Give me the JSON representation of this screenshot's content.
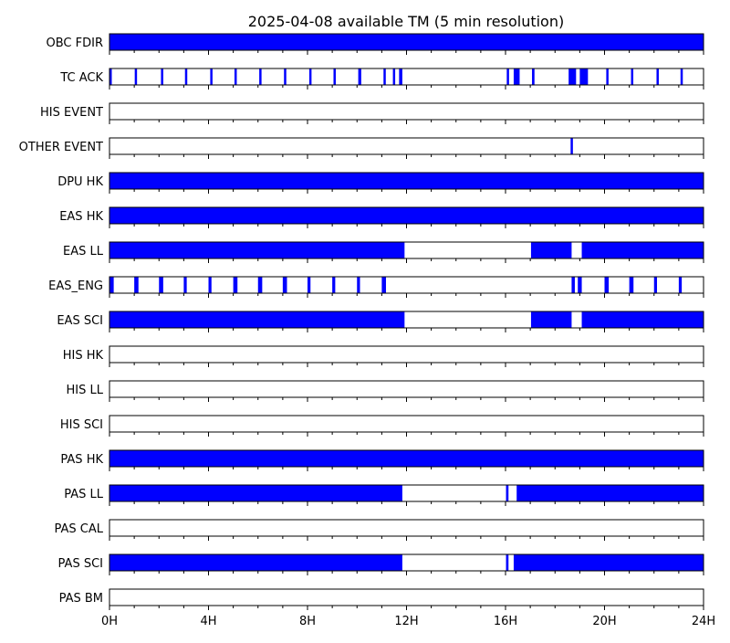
{
  "chart_data": {
    "type": "timeline",
    "title": "2025-04-08 available TM (5 min resolution)",
    "x_unit": "hours",
    "xlim": [
      0,
      24
    ],
    "x_ticks": [
      {
        "value": 0,
        "label": "0H"
      },
      {
        "value": 4,
        "label": "4H"
      },
      {
        "value": 8,
        "label": "8H"
      },
      {
        "value": 12,
        "label": "12H"
      },
      {
        "value": 16,
        "label": "16H"
      },
      {
        "value": 20,
        "label": "20H"
      },
      {
        "value": 24,
        "label": "24H"
      }
    ],
    "minor_tick_step_hours": 1,
    "fill_color": "#0000ff",
    "rows": [
      {
        "name": "OBC FDIR",
        "available": [
          [
            0,
            24
          ]
        ]
      },
      {
        "name": "TC ACK",
        "available": [
          [
            0.0,
            0.08
          ],
          [
            1.02,
            1.1
          ],
          [
            2.08,
            2.12
          ],
          [
            3.05,
            3.12
          ],
          [
            4.07,
            4.13
          ],
          [
            5.05,
            5.12
          ],
          [
            6.05,
            6.12
          ],
          [
            7.05,
            7.12
          ],
          [
            8.07,
            8.12
          ],
          [
            9.05,
            9.12
          ],
          [
            10.05,
            10.17
          ],
          [
            11.07,
            11.12
          ],
          [
            11.45,
            11.5
          ],
          [
            11.7,
            11.83
          ],
          [
            16.05,
            16.12
          ],
          [
            16.33,
            16.57
          ],
          [
            17.07,
            17.17
          ],
          [
            18.55,
            18.85
          ],
          [
            19.0,
            19.33
          ],
          [
            20.07,
            20.12
          ],
          [
            21.07,
            21.12
          ],
          [
            22.1,
            22.17
          ],
          [
            23.07,
            23.12
          ]
        ]
      },
      {
        "name": "HIS EVENT",
        "available": []
      },
      {
        "name": "OTHER EVENT",
        "available": [
          [
            18.63,
            18.7
          ]
        ]
      },
      {
        "name": "DPU HK",
        "available": [
          [
            0,
            24
          ]
        ]
      },
      {
        "name": "EAS HK",
        "available": [
          [
            0,
            24
          ]
        ]
      },
      {
        "name": "EAS LL",
        "available": [
          [
            0,
            11.92
          ],
          [
            17.03,
            18.67
          ],
          [
            19.08,
            24
          ]
        ]
      },
      {
        "name": "EAS_ENG",
        "available": [
          [
            0.0,
            0.17
          ],
          [
            1.0,
            1.17
          ],
          [
            2.0,
            2.17
          ],
          [
            3.0,
            3.12
          ],
          [
            4.0,
            4.12
          ],
          [
            5.0,
            5.17
          ],
          [
            6.0,
            6.17
          ],
          [
            7.0,
            7.17
          ],
          [
            8.0,
            8.12
          ],
          [
            9.0,
            9.12
          ],
          [
            10.0,
            10.12
          ],
          [
            11.0,
            11.17
          ],
          [
            18.67,
            18.8
          ],
          [
            18.92,
            19.08
          ],
          [
            20.0,
            20.17
          ],
          [
            21.0,
            21.17
          ],
          [
            22.0,
            22.12
          ],
          [
            23.0,
            23.12
          ]
        ]
      },
      {
        "name": "EAS SCI",
        "available": [
          [
            0,
            11.92
          ],
          [
            17.03,
            18.67
          ],
          [
            19.08,
            24
          ]
        ]
      },
      {
        "name": "HIS HK",
        "available": []
      },
      {
        "name": "HIS LL",
        "available": []
      },
      {
        "name": "HIS SCI",
        "available": []
      },
      {
        "name": "PAS HK",
        "available": [
          [
            0,
            24
          ]
        ]
      },
      {
        "name": "PAS LL",
        "available": [
          [
            0,
            11.83
          ],
          [
            16.02,
            16.12
          ],
          [
            16.45,
            24
          ]
        ]
      },
      {
        "name": "PAS CAL",
        "available": []
      },
      {
        "name": "PAS SCI",
        "available": [
          [
            0,
            11.83
          ],
          [
            16.02,
            16.12
          ],
          [
            16.33,
            24
          ]
        ]
      },
      {
        "name": "PAS BM",
        "available": []
      }
    ]
  }
}
